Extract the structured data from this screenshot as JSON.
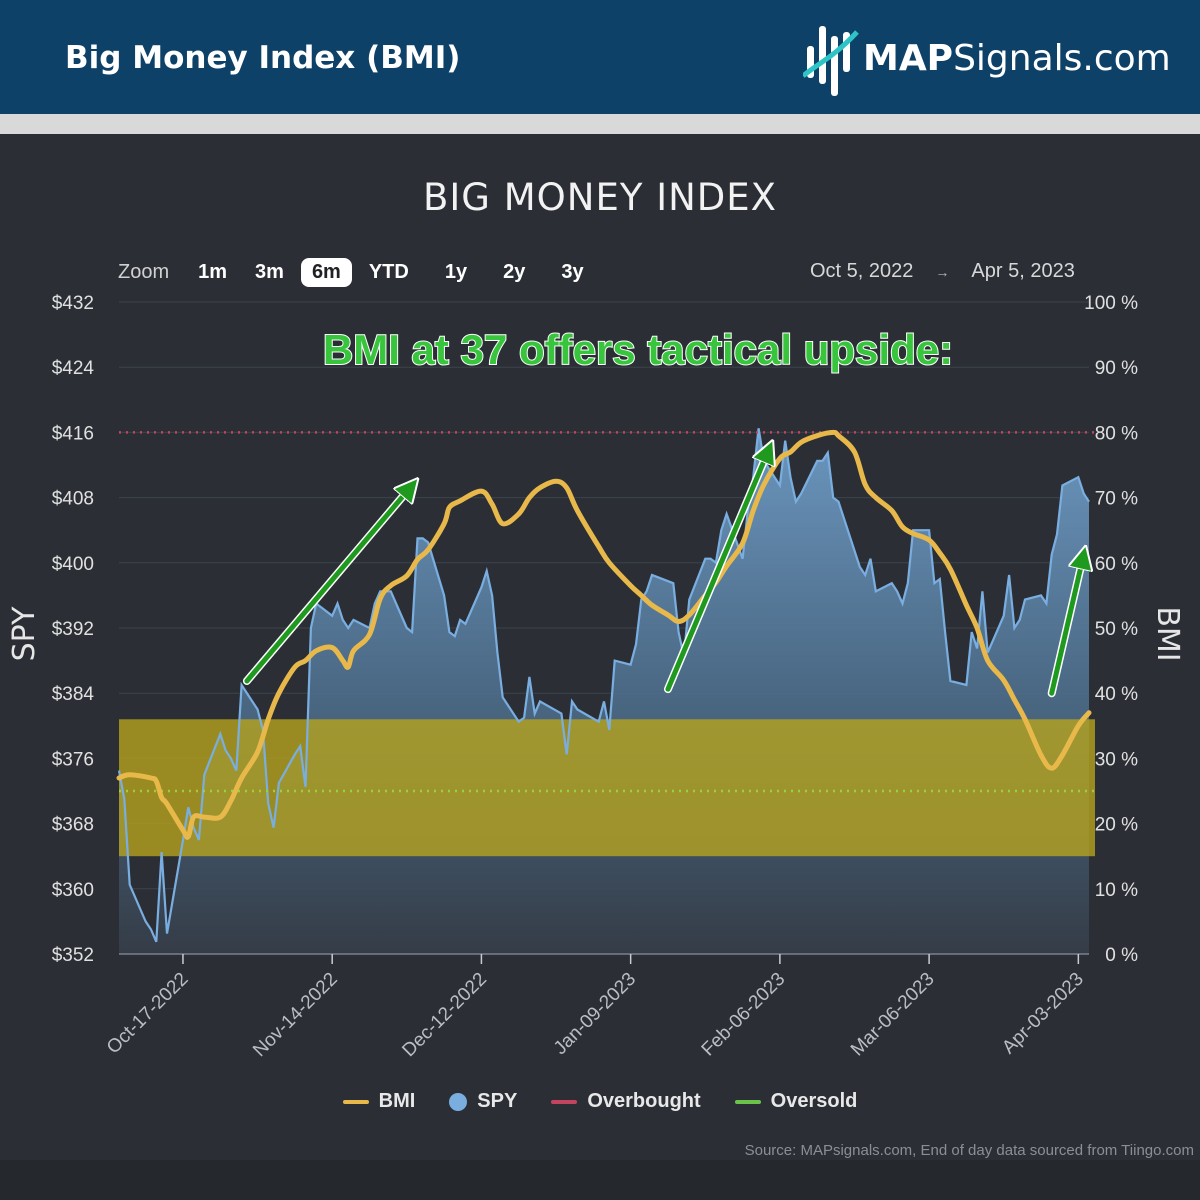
{
  "header": {
    "title": "Big Money Index (BMI)",
    "logo_bold": "MAP",
    "logo_rest": "Signals.com"
  },
  "zoom": {
    "label": "Zoom",
    "options": [
      "1m",
      "3m",
      "6m",
      "YTD",
      "1y",
      "2y",
      "3y"
    ],
    "active": "6m"
  },
  "date_range": {
    "from": "Oct 5, 2022",
    "to": "Apr 5, 2023",
    "separator": "→"
  },
  "source": "Source: MAPsignals.com, End of day data sourced from Tiingo.com",
  "colors": {
    "bmi": "#e8b94a",
    "spy": "#7aaee0",
    "overbought": "#c2445e",
    "oversold": "#9bd23c",
    "band": "#b8a51c",
    "annotation_text": "#39c43e",
    "arrow": "#1f9a1f"
  },
  "chart_data": {
    "type": "line",
    "title": "BIG MONEY INDEX",
    "annotation": "BMI at 37 offers tactical upside:",
    "y_left": {
      "label": "SPY",
      "min": 352,
      "max": 432,
      "ticks": [
        "$432",
        "$424",
        "$416",
        "$408",
        "$400",
        "$392",
        "$384",
        "$376",
        "$368",
        "$360",
        "$352"
      ]
    },
    "y_right": {
      "label": "BMI",
      "min": 0,
      "max": 100,
      "ticks": [
        "100 %",
        "90 %",
        "80 %",
        "70 %",
        "60 %",
        "50 %",
        "40 %",
        "30 %",
        "20 %",
        "10 %",
        "0 %"
      ]
    },
    "x_ticks": [
      "Oct-17-2022",
      "Nov-14-2022",
      "Dec-12-2022",
      "Jan-09-2023",
      "Feb-06-2023",
      "Mar-06-2023",
      "Apr-03-2023"
    ],
    "x_range": [
      "2022-10-05",
      "2023-04-05"
    ],
    "overbought": 80,
    "oversold": 25,
    "band": [
      15,
      36
    ],
    "series": [
      {
        "name": "BMI",
        "axis": "right",
        "points": [
          [
            "2022-10-05",
            27
          ],
          [
            "2022-10-07",
            27.5
          ],
          [
            "2022-10-11",
            27
          ],
          [
            "2022-10-12",
            26.5
          ],
          [
            "2022-10-13",
            24
          ],
          [
            "2022-10-14",
            23
          ],
          [
            "2022-10-17",
            19
          ],
          [
            "2022-10-18",
            18
          ],
          [
            "2022-10-19",
            21
          ],
          [
            "2022-10-21",
            21
          ],
          [
            "2022-10-24",
            21
          ],
          [
            "2022-10-26",
            23.5
          ],
          [
            "2022-10-28",
            27
          ],
          [
            "2022-10-31",
            31
          ],
          [
            "2022-11-02",
            36
          ],
          [
            "2022-11-04",
            40
          ],
          [
            "2022-11-07",
            44
          ],
          [
            "2022-11-09",
            45
          ],
          [
            "2022-11-11",
            46.5
          ],
          [
            "2022-11-14",
            47
          ],
          [
            "2022-11-16",
            45
          ],
          [
            "2022-11-17",
            44
          ],
          [
            "2022-11-18",
            46.5
          ],
          [
            "2022-11-21",
            49
          ],
          [
            "2022-11-23",
            54.5
          ],
          [
            "2022-11-25",
            56.5
          ],
          [
            "2022-11-28",
            58
          ],
          [
            "2022-11-30",
            60.5
          ],
          [
            "2022-12-02",
            62
          ],
          [
            "2022-12-05",
            66
          ],
          [
            "2022-12-06",
            68.5
          ],
          [
            "2022-12-08",
            69.5
          ],
          [
            "2022-12-12",
            71
          ],
          [
            "2022-12-14",
            69
          ],
          [
            "2022-12-16",
            66
          ],
          [
            "2022-12-19",
            67.5
          ],
          [
            "2022-12-21",
            70
          ],
          [
            "2022-12-23",
            71.5
          ],
          [
            "2022-12-26",
            72.5
          ],
          [
            "2022-12-28",
            71.5
          ],
          [
            "2022-12-30",
            68
          ],
          [
            "2023-01-03",
            62.5
          ],
          [
            "2023-01-05",
            60
          ],
          [
            "2023-01-09",
            56.5
          ],
          [
            "2023-01-11",
            55
          ],
          [
            "2023-01-13",
            53.5
          ],
          [
            "2023-01-16",
            52
          ],
          [
            "2023-01-18",
            51
          ],
          [
            "2023-01-20",
            52
          ],
          [
            "2023-01-23",
            55
          ],
          [
            "2023-01-25",
            57
          ],
          [
            "2023-01-27",
            59.5
          ],
          [
            "2023-01-30",
            63
          ],
          [
            "2023-02-01",
            68
          ],
          [
            "2023-02-03",
            72
          ],
          [
            "2023-02-06",
            76
          ],
          [
            "2023-02-08",
            77
          ],
          [
            "2023-02-10",
            78.5
          ],
          [
            "2023-02-13",
            79.5
          ],
          [
            "2023-02-16",
            80
          ],
          [
            "2023-02-17",
            79.5
          ],
          [
            "2023-02-20",
            77
          ],
          [
            "2023-02-22",
            72
          ],
          [
            "2023-02-24",
            70
          ],
          [
            "2023-02-27",
            68
          ],
          [
            "2023-03-01",
            65.5
          ],
          [
            "2023-03-03",
            64.5
          ],
          [
            "2023-03-06",
            63.5
          ],
          [
            "2023-03-08",
            61.5
          ],
          [
            "2023-03-10",
            59
          ],
          [
            "2023-03-13",
            53.5
          ],
          [
            "2023-03-15",
            50
          ],
          [
            "2023-03-17",
            45
          ],
          [
            "2023-03-20",
            42
          ],
          [
            "2023-03-22",
            39
          ],
          [
            "2023-03-24",
            36
          ],
          [
            "2023-03-27",
            30.5
          ],
          [
            "2023-03-29",
            28.5
          ],
          [
            "2023-03-31",
            30.5
          ],
          [
            "2023-04-03",
            35
          ],
          [
            "2023-04-05",
            37
          ]
        ]
      },
      {
        "name": "SPY",
        "axis": "left",
        "points": [
          [
            "2022-10-05",
            374.5
          ],
          [
            "2022-10-06",
            371
          ],
          [
            "2022-10-07",
            360.5
          ],
          [
            "2022-10-10",
            356
          ],
          [
            "2022-10-11",
            355
          ],
          [
            "2022-10-12",
            353.5
          ],
          [
            "2022-10-13",
            364.5
          ],
          [
            "2022-10-14",
            354.5
          ],
          [
            "2022-10-17",
            366
          ],
          [
            "2022-10-18",
            370
          ],
          [
            "2022-10-19",
            367.5
          ],
          [
            "2022-10-20",
            366
          ],
          [
            "2022-10-21",
            374
          ],
          [
            "2022-10-24",
            379
          ],
          [
            "2022-10-25",
            377
          ],
          [
            "2022-10-26",
            376
          ],
          [
            "2022-10-27",
            374.5
          ],
          [
            "2022-10-28",
            385
          ],
          [
            "2022-10-31",
            382
          ],
          [
            "2022-11-01",
            379.5
          ],
          [
            "2022-11-02",
            370.5
          ],
          [
            "2022-11-03",
            367.5
          ],
          [
            "2022-11-04",
            373
          ],
          [
            "2022-11-07",
            376.5
          ],
          [
            "2022-11-08",
            377.5
          ],
          [
            "2022-11-09",
            372.5
          ],
          [
            "2022-11-10",
            392
          ],
          [
            "2022-11-11",
            395
          ],
          [
            "2022-11-14",
            393.5
          ],
          [
            "2022-11-15",
            395
          ],
          [
            "2022-11-16",
            393
          ],
          [
            "2022-11-17",
            392
          ],
          [
            "2022-11-18",
            393
          ],
          [
            "2022-11-21",
            392
          ],
          [
            "2022-11-22",
            395
          ],
          [
            "2022-11-23",
            396.5
          ],
          [
            "2022-11-25",
            396.5
          ],
          [
            "2022-11-28",
            392
          ],
          [
            "2022-11-29",
            391.5
          ],
          [
            "2022-11-30",
            403
          ],
          [
            "2022-12-01",
            403
          ],
          [
            "2022-12-02",
            402.5
          ],
          [
            "2022-12-05",
            396
          ],
          [
            "2022-12-06",
            391.5
          ],
          [
            "2022-12-07",
            391
          ],
          [
            "2022-12-08",
            393
          ],
          [
            "2022-12-09",
            392.5
          ],
          [
            "2022-12-12",
            397
          ],
          [
            "2022-12-13",
            399
          ],
          [
            "2022-12-14",
            396
          ],
          [
            "2022-12-15",
            389
          ],
          [
            "2022-12-16",
            383.5
          ],
          [
            "2022-12-19",
            380.5
          ],
          [
            "2022-12-20",
            381
          ],
          [
            "2022-12-21",
            386
          ],
          [
            "2022-12-22",
            381.5
          ],
          [
            "2022-12-23",
            383
          ],
          [
            "2022-12-27",
            381.5
          ],
          [
            "2022-12-28",
            376.5
          ],
          [
            "2022-12-29",
            383
          ],
          [
            "2022-12-30",
            382
          ],
          [
            "2023-01-03",
            380.5
          ],
          [
            "2023-01-04",
            383
          ],
          [
            "2023-01-05",
            379.5
          ],
          [
            "2023-01-06",
            388
          ],
          [
            "2023-01-09",
            387.5
          ],
          [
            "2023-01-10",
            390
          ],
          [
            "2023-01-11",
            395.5
          ],
          [
            "2023-01-12",
            396.5
          ],
          [
            "2023-01-13",
            398.5
          ],
          [
            "2023-01-17",
            397.5
          ],
          [
            "2023-01-18",
            391.5
          ],
          [
            "2023-01-19",
            388.5
          ],
          [
            "2023-01-20",
            395.5
          ],
          [
            "2023-01-23",
            400.5
          ],
          [
            "2023-01-24",
            400.5
          ],
          [
            "2023-01-25",
            400
          ],
          [
            "2023-01-26",
            404
          ],
          [
            "2023-01-27",
            406
          ],
          [
            "2023-01-30",
            400.5
          ],
          [
            "2023-01-31",
            406.5
          ],
          [
            "2023-02-01",
            410.5
          ],
          [
            "2023-02-02",
            416.5
          ],
          [
            "2023-02-03",
            412.5
          ],
          [
            "2023-02-06",
            409.5
          ],
          [
            "2023-02-07",
            415
          ],
          [
            "2023-02-08",
            410.5
          ],
          [
            "2023-02-09",
            407.5
          ],
          [
            "2023-02-10",
            408.5
          ],
          [
            "2023-02-13",
            412.5
          ],
          [
            "2023-02-14",
            412.5
          ],
          [
            "2023-02-15",
            413.5
          ],
          [
            "2023-02-16",
            408
          ],
          [
            "2023-02-17",
            407.5
          ],
          [
            "2023-02-21",
            399.5
          ],
          [
            "2023-02-22",
            398.5
          ],
          [
            "2023-02-23",
            400.5
          ],
          [
            "2023-02-24",
            396.5
          ],
          [
            "2023-02-27",
            397.5
          ],
          [
            "2023-02-28",
            396.5
          ],
          [
            "2023-03-01",
            395
          ],
          [
            "2023-03-02",
            397.5
          ],
          [
            "2023-03-03",
            404
          ],
          [
            "2023-03-06",
            404
          ],
          [
            "2023-03-07",
            397.5
          ],
          [
            "2023-03-08",
            398
          ],
          [
            "2023-03-09",
            391.5
          ],
          [
            "2023-03-10",
            385.5
          ],
          [
            "2023-03-13",
            385
          ],
          [
            "2023-03-14",
            391.5
          ],
          [
            "2023-03-15",
            389.5
          ],
          [
            "2023-03-16",
            396.5
          ],
          [
            "2023-03-17",
            389
          ],
          [
            "2023-03-20",
            393.5
          ],
          [
            "2023-03-21",
            398.5
          ],
          [
            "2023-03-22",
            392
          ],
          [
            "2023-03-23",
            393
          ],
          [
            "2023-03-24",
            395.5
          ],
          [
            "2023-03-27",
            396
          ],
          [
            "2023-03-28",
            395
          ],
          [
            "2023-03-29",
            401
          ],
          [
            "2023-03-30",
            403.5
          ],
          [
            "2023-03-31",
            409.5
          ],
          [
            "2023-04-03",
            410.5
          ],
          [
            "2023-04-04",
            408.5
          ],
          [
            "2023-04-05",
            407.5
          ]
        ]
      }
    ]
  }
}
